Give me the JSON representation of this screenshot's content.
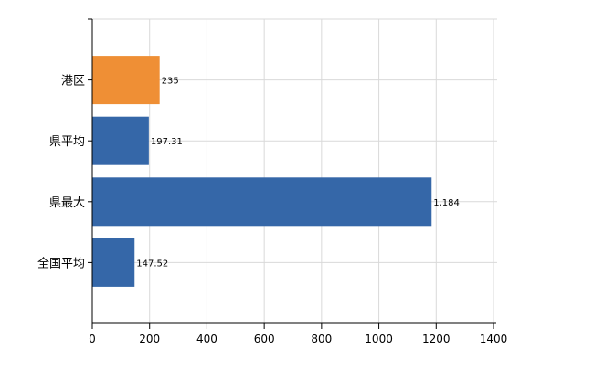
{
  "chart_data": {
    "type": "bar",
    "orientation": "horizontal",
    "categories": [
      "港区",
      "県平均",
      "県最大",
      "全国平均"
    ],
    "values": [
      235,
      197.31,
      1184,
      147.52
    ],
    "value_labels": [
      "235",
      "197.31",
      "1,184",
      "147.52"
    ],
    "bar_colors": [
      "#ef8f35",
      "#3567a8",
      "#3567a8",
      "#3567a8"
    ],
    "xlim": [
      0,
      1400
    ],
    "xticks": [
      0,
      200,
      400,
      600,
      800,
      1000,
      1200,
      1400
    ],
    "grid": true,
    "title": "",
    "xlabel": "",
    "ylabel": ""
  }
}
